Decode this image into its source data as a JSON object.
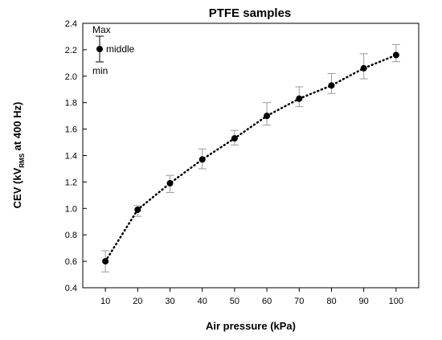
{
  "chart_data": {
    "type": "scatter",
    "title": "PTFE samples",
    "xlabel": "Air pressure (kPa)",
    "ylabel_parts": [
      "CEV (kV",
      "RMS",
      " at 400 Hz)"
    ],
    "x": [
      10,
      20,
      30,
      40,
      50,
      60,
      70,
      80,
      90,
      100
    ],
    "y": [
      0.6,
      0.99,
      1.19,
      1.37,
      1.53,
      1.7,
      1.83,
      1.93,
      2.06,
      2.16
    ],
    "y_max": [
      0.68,
      1.02,
      1.25,
      1.45,
      1.59,
      1.8,
      1.92,
      2.02,
      2.17,
      2.24
    ],
    "y_min": [
      0.52,
      0.94,
      1.12,
      1.3,
      1.48,
      1.63,
      1.77,
      1.87,
      1.98,
      2.11
    ],
    "xticks": [
      10,
      20,
      30,
      40,
      50,
      60,
      70,
      80,
      90,
      100
    ],
    "yticks": [
      "0.4",
      "0.6",
      "0.8",
      "1.0",
      "1.2",
      "1.4",
      "1.6",
      "1.8",
      "2.0",
      "2.2",
      "2.4"
    ],
    "xlim": [
      3,
      107
    ],
    "ylim": [
      0.4,
      2.4
    ],
    "line_style": "dotted",
    "grid": false,
    "legend": {
      "max_label": "Max",
      "middle_label": "middle",
      "min_label": "min",
      "position": "top-left"
    },
    "colors": {
      "marker": "#000000",
      "error_bar": "#9a9a9a",
      "line": "#000000"
    }
  }
}
